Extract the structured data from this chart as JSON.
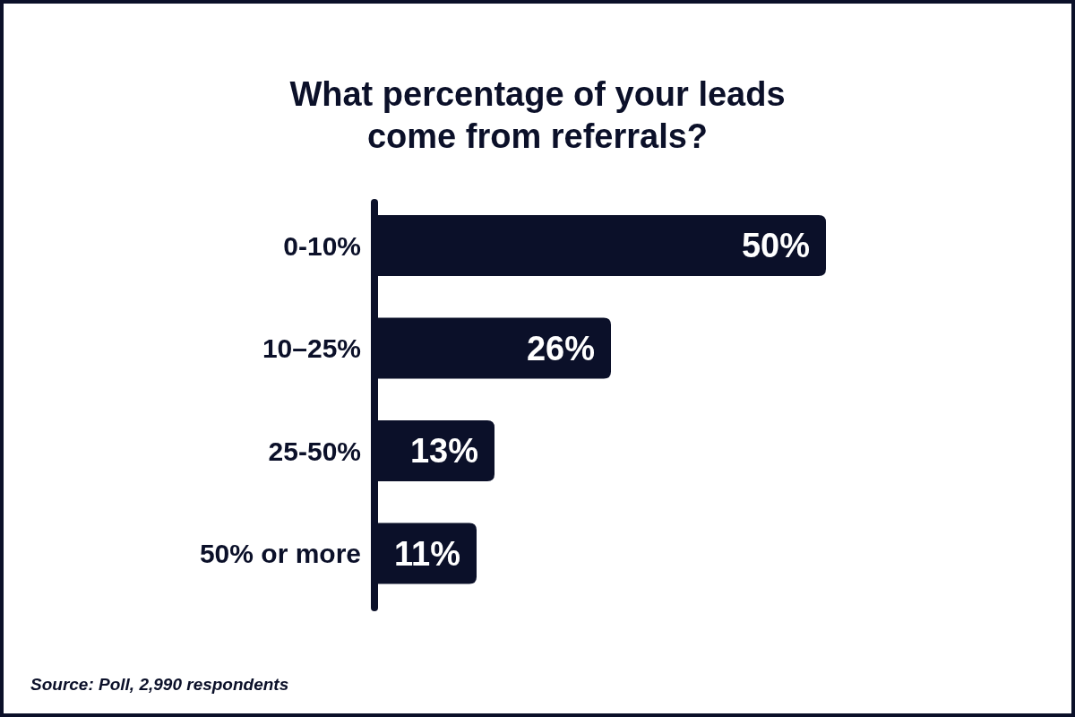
{
  "chart_data": {
    "type": "bar",
    "orientation": "horizontal",
    "title": "What percentage of your leads come from referrals?",
    "categories": [
      "0-10%",
      "10–25%",
      "25-50%",
      "50% or more"
    ],
    "values": [
      50,
      26,
      13,
      11
    ],
    "value_labels": [
      "50%",
      "26%",
      "13%",
      "11%"
    ],
    "color": "#0b1029",
    "annotations": [
      "Source: Poll, 2,990 respondents"
    ]
  }
}
